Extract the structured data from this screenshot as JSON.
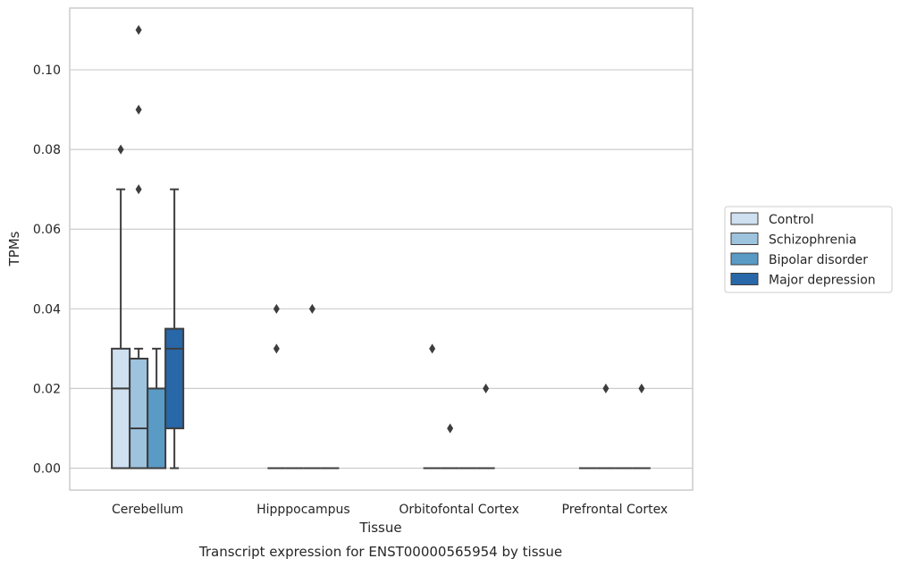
{
  "chart_data": {
    "type": "box",
    "title": "",
    "caption": "Transcript expression for ENST00000565954 by tissue",
    "xlabel": "Tissue",
    "ylabel": "TPMs",
    "ylim": [
      -0.0055,
      0.1155
    ],
    "yticks": [
      "0.00",
      "0.02",
      "0.04",
      "0.06",
      "0.08",
      "0.10"
    ],
    "grid": "horizontal",
    "legend_position": "right",
    "categories": [
      "Cerebellum",
      "Hipppocampus",
      "Orbitofontal Cortex",
      "Prefrontal Cortex"
    ],
    "series": [
      {
        "name": "Control",
        "color": "#cfe0f0",
        "boxes": [
          {
            "q1": 0.0,
            "median": 0.02,
            "q3": 0.03,
            "whisker_low": 0.0,
            "whisker_high": 0.07,
            "outliers": [
              0.08
            ]
          },
          {
            "q1": 0.0,
            "median": 0.0,
            "q3": 0.0,
            "whisker_low": 0.0,
            "whisker_high": 0.0,
            "outliers": [
              0.03,
              0.04
            ]
          },
          {
            "q1": 0.0,
            "median": 0.0,
            "q3": 0.0,
            "whisker_low": 0.0,
            "whisker_high": 0.0,
            "outliers": [
              0.03
            ]
          },
          {
            "q1": 0.0,
            "median": 0.0,
            "q3": 0.0,
            "whisker_low": 0.0,
            "whisker_high": 0.0,
            "outliers": []
          }
        ]
      },
      {
        "name": "Schizophrenia",
        "color": "#9dc3de",
        "boxes": [
          {
            "q1": 0.0,
            "median": 0.01,
            "q3": 0.0275,
            "whisker_low": 0.0,
            "whisker_high": 0.03,
            "outliers": [
              0.07,
              0.09,
              0.11
            ]
          },
          {
            "q1": 0.0,
            "median": 0.0,
            "q3": 0.0,
            "whisker_low": 0.0,
            "whisker_high": 0.0,
            "outliers": []
          },
          {
            "q1": 0.0,
            "median": 0.0,
            "q3": 0.0,
            "whisker_low": 0.0,
            "whisker_high": 0.0,
            "outliers": [
              0.01
            ]
          },
          {
            "q1": 0.0,
            "median": 0.0,
            "q3": 0.0,
            "whisker_low": 0.0,
            "whisker_high": 0.0,
            "outliers": [
              0.02
            ]
          }
        ]
      },
      {
        "name": "Bipolar disorder",
        "color": "#5a9bc6",
        "boxes": [
          {
            "q1": 0.0,
            "median": 0.0,
            "q3": 0.02,
            "whisker_low": 0.0,
            "whisker_high": 0.03,
            "outliers": []
          },
          {
            "q1": 0.0,
            "median": 0.0,
            "q3": 0.0,
            "whisker_low": 0.0,
            "whisker_high": 0.0,
            "outliers": [
              0.04
            ]
          },
          {
            "q1": 0.0,
            "median": 0.0,
            "q3": 0.0,
            "whisker_low": 0.0,
            "whisker_high": 0.0,
            "outliers": []
          },
          {
            "q1": 0.0,
            "median": 0.0,
            "q3": 0.0,
            "whisker_low": 0.0,
            "whisker_high": 0.0,
            "outliers": []
          }
        ]
      },
      {
        "name": "Major depression",
        "color": "#2867a8",
        "boxes": [
          {
            "q1": 0.01,
            "median": 0.03,
            "q3": 0.035,
            "whisker_low": 0.0,
            "whisker_high": 0.07,
            "outliers": []
          },
          {
            "q1": 0.0,
            "median": 0.0,
            "q3": 0.0,
            "whisker_low": 0.0,
            "whisker_high": 0.0,
            "outliers": []
          },
          {
            "q1": 0.0,
            "median": 0.0,
            "q3": 0.0,
            "whisker_low": 0.0,
            "whisker_high": 0.0,
            "outliers": [
              0.02
            ]
          },
          {
            "q1": 0.0,
            "median": 0.0,
            "q3": 0.0,
            "whisker_low": 0.0,
            "whisker_high": 0.0,
            "outliers": [
              0.02
            ]
          }
        ]
      }
    ]
  }
}
